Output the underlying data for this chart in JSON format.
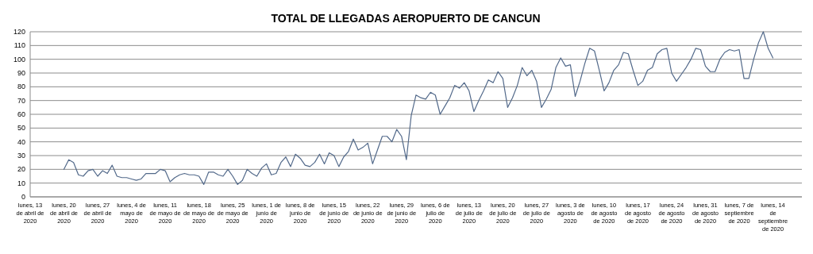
{
  "chart_data": {
    "type": "line",
    "title": "TOTAL DE LLEGADAS AEROPUERTO DE CANCUN",
    "x": [
      "2020-04-20",
      "2020-04-21",
      "2020-04-22",
      "2020-04-23",
      "2020-04-24",
      "2020-04-25",
      "2020-04-26",
      "2020-04-27",
      "2020-04-28",
      "2020-04-29",
      "2020-04-30",
      "2020-05-01",
      "2020-05-02",
      "2020-05-03",
      "2020-05-04",
      "2020-05-05",
      "2020-05-06",
      "2020-05-07",
      "2020-05-08",
      "2020-05-09",
      "2020-05-10",
      "2020-05-11",
      "2020-05-12",
      "2020-05-13",
      "2020-05-14",
      "2020-05-15",
      "2020-05-16",
      "2020-05-17",
      "2020-05-18",
      "2020-05-19",
      "2020-05-20",
      "2020-05-21",
      "2020-05-22",
      "2020-05-23",
      "2020-05-24",
      "2020-05-25",
      "2020-05-26",
      "2020-05-27",
      "2020-05-28",
      "2020-05-29",
      "2020-05-30",
      "2020-05-31",
      "2020-06-01",
      "2020-06-02",
      "2020-06-03",
      "2020-06-04",
      "2020-06-05",
      "2020-06-06",
      "2020-06-07",
      "2020-06-08",
      "2020-06-09",
      "2020-06-10",
      "2020-06-11",
      "2020-06-12",
      "2020-06-13",
      "2020-06-14",
      "2020-06-15",
      "2020-06-16",
      "2020-06-17",
      "2020-06-18",
      "2020-06-19",
      "2020-06-20",
      "2020-06-21",
      "2020-06-22",
      "2020-06-23",
      "2020-06-24",
      "2020-06-25",
      "2020-06-26",
      "2020-06-27",
      "2020-06-28",
      "2020-06-29",
      "2020-06-30",
      "2020-07-01",
      "2020-07-02",
      "2020-07-03",
      "2020-07-04",
      "2020-07-05",
      "2020-07-06",
      "2020-07-07",
      "2020-07-08",
      "2020-07-09",
      "2020-07-10",
      "2020-07-11",
      "2020-07-12",
      "2020-07-13",
      "2020-07-14",
      "2020-07-15",
      "2020-07-16",
      "2020-07-17",
      "2020-07-18",
      "2020-07-19",
      "2020-07-20",
      "2020-07-21",
      "2020-07-22",
      "2020-07-23",
      "2020-07-24",
      "2020-07-25",
      "2020-07-26",
      "2020-07-27",
      "2020-07-28",
      "2020-07-29",
      "2020-07-30",
      "2020-07-31",
      "2020-08-01",
      "2020-08-02",
      "2020-08-03",
      "2020-08-04",
      "2020-08-05",
      "2020-08-06",
      "2020-08-07",
      "2020-08-08",
      "2020-08-09",
      "2020-08-10",
      "2020-08-11",
      "2020-08-12",
      "2020-08-13",
      "2020-08-14",
      "2020-08-15",
      "2020-08-16",
      "2020-08-17",
      "2020-08-18",
      "2020-08-19",
      "2020-08-20",
      "2020-08-21",
      "2020-08-22",
      "2020-08-23",
      "2020-08-24",
      "2020-08-25",
      "2020-08-26",
      "2020-08-27",
      "2020-08-28",
      "2020-08-29",
      "2020-08-30",
      "2020-08-31",
      "2020-09-01",
      "2020-09-02",
      "2020-09-03",
      "2020-09-04",
      "2020-09-05",
      "2020-09-06",
      "2020-09-07",
      "2020-09-08",
      "2020-09-09",
      "2020-09-10",
      "2020-09-11",
      "2020-09-12",
      "2020-09-13",
      "2020-09-14"
    ],
    "series": [
      {
        "color": "#52698a",
        "values": [
          20,
          27,
          25,
          16,
          15,
          19,
          20,
          15,
          19,
          17,
          23,
          15,
          14,
          14,
          13,
          12,
          13,
          17,
          17,
          17,
          20,
          19,
          11,
          14,
          16,
          17,
          16,
          16,
          15,
          9,
          18,
          18,
          16,
          15,
          20,
          15,
          9,
          12,
          20,
          17,
          15,
          21,
          24,
          16,
          17,
          25,
          29,
          22,
          31,
          28,
          23,
          22,
          25,
          31,
          24,
          32,
          30,
          22,
          29,
          33,
          42,
          34,
          36,
          39,
          24,
          34,
          44,
          44,
          40,
          49,
          44,
          27,
          59,
          74,
          72,
          71,
          76,
          74,
          60,
          66,
          72,
          81,
          79,
          83,
          77,
          62,
          70,
          77,
          85,
          83,
          91,
          86,
          65,
          72,
          81,
          94,
          88,
          92,
          84,
          65,
          71,
          78,
          94,
          101,
          95,
          96,
          73,
          84,
          97,
          108,
          106,
          92,
          77,
          83,
          92,
          96,
          105,
          104,
          92,
          81,
          84,
          92,
          94,
          104,
          107,
          108,
          90,
          84,
          89,
          94,
          100,
          108,
          107,
          95,
          91,
          91,
          100,
          105,
          107,
          106,
          107,
          86,
          86,
          100,
          112,
          120,
          108,
          101
        ]
      }
    ],
    "xlim": [
      "2020-04-13",
      "2020-09-20"
    ],
    "xticks": [
      {
        "value": "2020-04-13",
        "label": "lunes, 13 de abril de 2020"
      },
      {
        "value": "2020-04-20",
        "label": "lunes, 20 de abril de 2020"
      },
      {
        "value": "2020-04-27",
        "label": "lunes, 27 de abril de 2020"
      },
      {
        "value": "2020-05-04",
        "label": "lunes, 4 de mayo de 2020"
      },
      {
        "value": "2020-05-11",
        "label": "lunes, 11 de mayo de 2020"
      },
      {
        "value": "2020-05-18",
        "label": "lunes, 18 de mayo de 2020"
      },
      {
        "value": "2020-05-25",
        "label": "lunes, 25 de mayo de 2020"
      },
      {
        "value": "2020-06-01",
        "label": "lunes, 1 de junio de 2020"
      },
      {
        "value": "2020-06-08",
        "label": "lunes, 8 de junio de 2020"
      },
      {
        "value": "2020-06-15",
        "label": "lunes, 15 de junio de 2020"
      },
      {
        "value": "2020-06-22",
        "label": "lunes, 22 de junio de 2020"
      },
      {
        "value": "2020-06-29",
        "label": "lunes, 29 de junio de 2020"
      },
      {
        "value": "2020-07-06",
        "label": "lunes, 6 de julio de 2020"
      },
      {
        "value": "2020-07-13",
        "label": "lunes, 13 de julio de 2020"
      },
      {
        "value": "2020-07-20",
        "label": "lunes, 20 de julio de 2020"
      },
      {
        "value": "2020-07-27",
        "label": "lunes, 27 de julio de 2020"
      },
      {
        "value": "2020-08-03",
        "label": "lunes, 3 de agosto de 2020"
      },
      {
        "value": "2020-08-10",
        "label": "lunes, 10 de agosto de 2020"
      },
      {
        "value": "2020-08-17",
        "label": "lunes, 17 de agosto de 2020"
      },
      {
        "value": "2020-08-24",
        "label": "lunes, 24 de agosto de 2020"
      },
      {
        "value": "2020-08-31",
        "label": "lunes, 31 de agosto de 2020"
      },
      {
        "value": "2020-09-07",
        "label": "lunes, 7 de septiembre de 2020"
      },
      {
        "value": "2020-09-14",
        "label": "lunes, 14 de septiembre de 2020"
      }
    ],
    "ylim": [
      0,
      120
    ],
    "yticks": [
      0,
      10,
      20,
      30,
      40,
      50,
      60,
      70,
      80,
      90,
      100,
      110,
      120
    ],
    "grid": "y",
    "marker": "none",
    "line_style": "solid"
  }
}
